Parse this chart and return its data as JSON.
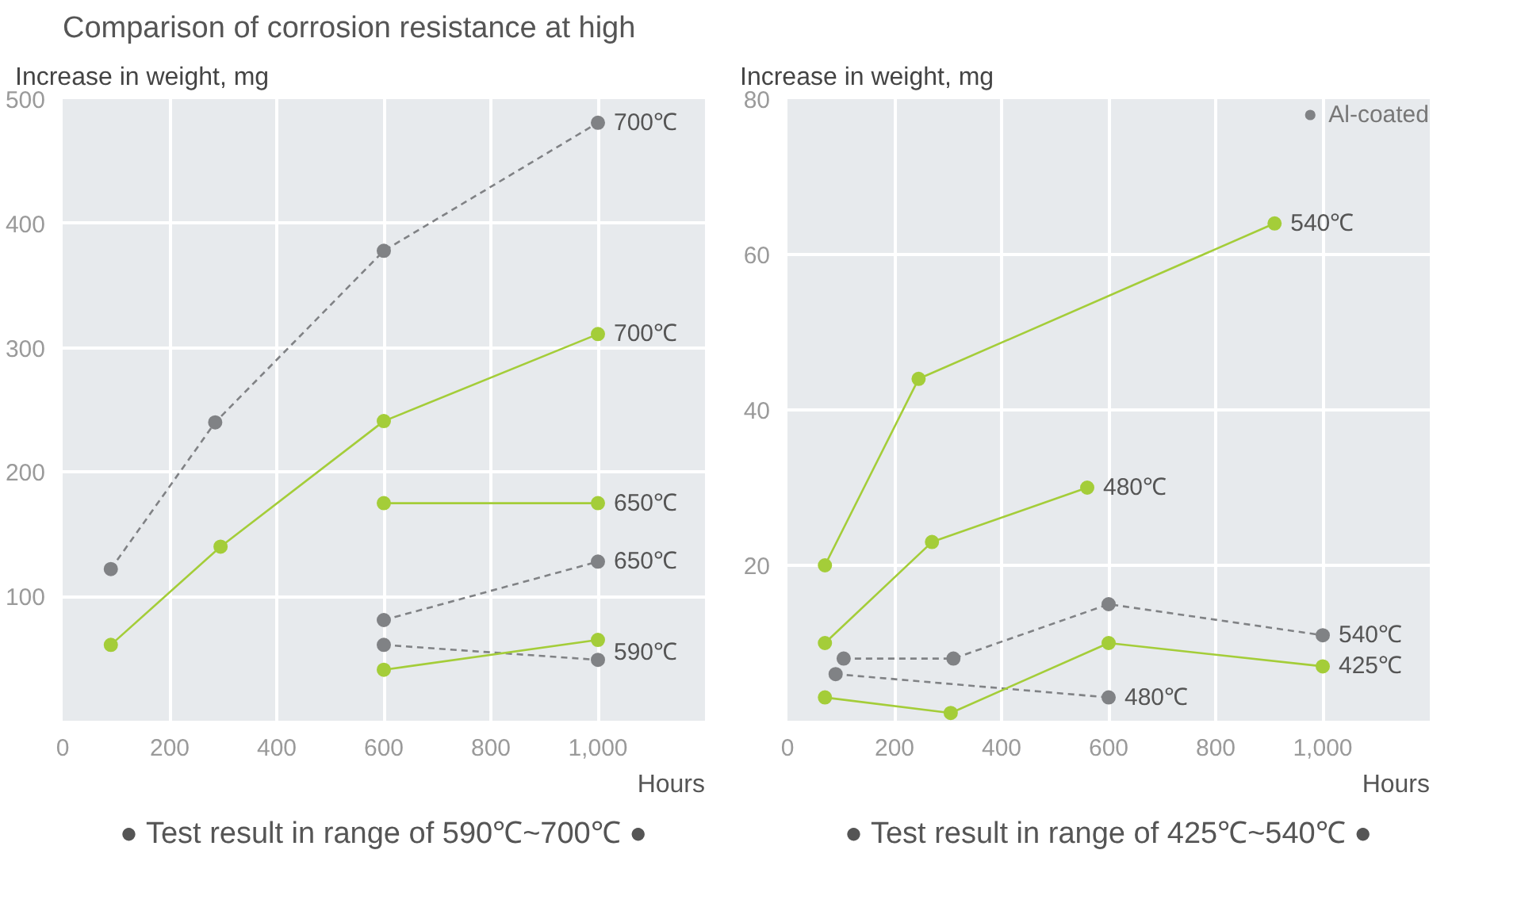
{
  "chart_data": [
    {
      "type": "line",
      "title": "Comparison of corrosion resistance at high",
      "ylabel": "Increase in weight, mg",
      "xlabel": "Hours",
      "xlim": [
        0,
        1200
      ],
      "xticks": [
        0,
        200,
        400,
        600,
        800,
        {
          "value": 1000,
          "label": "1,000"
        }
      ],
      "ylim": [
        0,
        500
      ],
      "yticks": [
        100,
        200,
        300,
        400,
        500
      ],
      "grid": true,
      "marker": "circle",
      "legend": false,
      "series": [
        {
          "color": "#808285",
          "line_style": "dashed",
          "x": [
            90,
            285,
            600,
            1000
          ],
          "values": [
            122,
            240,
            378,
            481
          ]
        },
        {
          "color": "#a4cd39",
          "line_style": "solid",
          "x": [
            90,
            295,
            600,
            1000
          ],
          "values": [
            61,
            140,
            241,
            311
          ]
        },
        {
          "color": "#a4cd39",
          "line_style": "solid",
          "x": [
            600,
            1000
          ],
          "values": [
            175,
            175
          ]
        },
        {
          "color": "#808285",
          "line_style": "dashed",
          "x": [
            600,
            1000
          ],
          "values": [
            81,
            128
          ]
        },
        {
          "color": "#808285",
          "line_style": "dashed",
          "x": [
            600,
            1000
          ],
          "values": [
            61,
            49
          ]
        },
        {
          "color": "#a4cd39",
          "line_style": "solid",
          "x": [
            600,
            1000
          ],
          "values": [
            41,
            65
          ]
        }
      ],
      "annotations": [
        {
          "text": "700℃",
          "x": 1000,
          "y": 481
        },
        {
          "text": "700℃",
          "x": 1000,
          "y": 311
        },
        {
          "text": "650℃",
          "x": 1000,
          "y": 175
        },
        {
          "text": "650℃",
          "x": 1000,
          "y": 128
        },
        {
          "text": "590℃",
          "x": 1000,
          "y": 55
        },
        "● Test result in range of 590℃~700℃ ●"
      ]
    },
    {
      "type": "line",
      "ylabel": "Increase in weight, mg",
      "xlabel": "Hours",
      "xlim": [
        0,
        1200
      ],
      "xticks": [
        0,
        200,
        400,
        600,
        800,
        {
          "value": 1000,
          "label": "1,000"
        }
      ],
      "ylim": [
        0,
        80
      ],
      "yticks": [
        20,
        40,
        60,
        80
      ],
      "grid": true,
      "marker": "circle",
      "legend": "top right",
      "series": [
        {
          "color": "#a4cd39",
          "line_style": "solid",
          "x": [
            70,
            245,
            910
          ],
          "values": [
            20,
            44,
            64
          ]
        },
        {
          "color": "#a4cd39",
          "line_style": "solid",
          "x": [
            70,
            270,
            560
          ],
          "values": [
            10,
            23,
            30
          ]
        },
        {
          "name": "Al-coated",
          "color": "#808285",
          "line_style": "dashed",
          "x": [
            105,
            310,
            600,
            1000
          ],
          "values": [
            8,
            8,
            15,
            11
          ]
        },
        {
          "color": "#808285",
          "line_style": "dashed",
          "x": [
            90,
            600
          ],
          "values": [
            6,
            3
          ]
        },
        {
          "color": "#a4cd39",
          "line_style": "solid",
          "x": [
            70,
            305,
            600,
            1000
          ],
          "values": [
            3,
            1,
            10,
            7
          ]
        }
      ],
      "annotations": [
        {
          "text": "540℃",
          "x": 910,
          "y": 64
        },
        {
          "text": "480℃",
          "x": 560,
          "y": 30
        },
        {
          "text": "540℃",
          "x": 1000,
          "y": 11
        },
        {
          "text": "425℃",
          "x": 1000,
          "y": 7
        },
        {
          "text": "480℃",
          "x": 600,
          "y": 3
        },
        "● Test result in range of 425℃~540℃ ●"
      ]
    }
  ]
}
